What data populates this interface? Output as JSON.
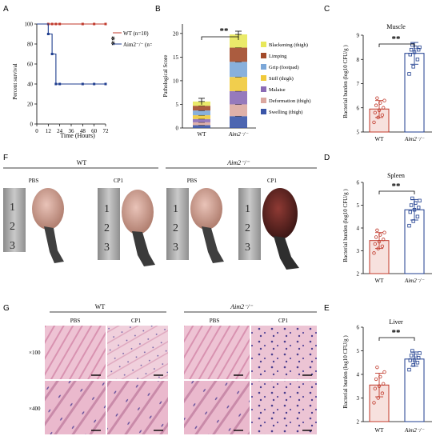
{
  "panels": {
    "A": "A",
    "B": "B",
    "C": "C",
    "D": "D",
    "E": "E",
    "F": "F",
    "G": "G"
  },
  "colors": {
    "wt": "#c0392b",
    "aim2": "#1f3e8f",
    "wt_bar_fill": "#f7e1de",
    "aim2_bar_fill": "#ffffff"
  },
  "panelA": {
    "ylabel": "Percent survival",
    "xlabel": "Time (Hours)",
    "legend": [
      "WT (n=10)",
      "Aim2⁻/⁻ (n=10)"
    ],
    "sig": "**",
    "yticks": [
      "0",
      "20",
      "40",
      "60",
      "80",
      "100"
    ],
    "xticks": [
      "0",
      "12",
      "24",
      "36",
      "48",
      "60",
      "72"
    ]
  },
  "panelB": {
    "ylabel": "Pathological Score",
    "sig": "**",
    "xcats": [
      "WT",
      "Aim2⁻/⁻"
    ],
    "yticks": [
      "0",
      "5",
      "10",
      "15",
      "20"
    ],
    "legend": [
      "Blackening (thigh)",
      "Limping",
      "Grip (footpad)",
      "Stiff (thigh)",
      "Malaise",
      "Deformation (thigh)",
      "Swelling (thigh)"
    ],
    "legend_colors": [
      "#e8e85a",
      "#a24a2a",
      "#7ba7d8",
      "#f0c93a",
      "#8b6bb5",
      "#dba8a0",
      "#3a55a8"
    ]
  },
  "panelC": {
    "title": "Muscle",
    "ylabel": "Bacterial burden (log10 CFU/g )",
    "sig": "**",
    "xcats": [
      "WT",
      "Aim2⁻/⁻"
    ],
    "yticks": [
      "5",
      "6",
      "7",
      "8",
      "9"
    ]
  },
  "panelD": {
    "title": "Spleen",
    "ylabel": "Bacterial burden (log10 CFU/g )",
    "sig": "**",
    "xcats": [
      "WT",
      "Aim2⁻/⁻"
    ],
    "yticks": [
      "2",
      "3",
      "4",
      "5",
      "6"
    ]
  },
  "panelE": {
    "title": "Liver",
    "ylabel": "Bacterial burden (log10 CFU/g )",
    "sig": "**",
    "xcats": [
      "WT",
      "Aim2⁻/⁻"
    ],
    "yticks": [
      "2",
      "3",
      "4",
      "5",
      "6"
    ]
  },
  "panelF": {
    "group_wt": "WT",
    "group_aim2": "Aim2⁻/⁻",
    "labels": [
      "PBS",
      "CP1",
      "PBS",
      "CP1"
    ],
    "ruler_text": "1 2 3"
  },
  "panelG": {
    "group_wt": "WT",
    "group_aim2": "Aim2⁻/⁻",
    "cols": [
      "PBS",
      "CP1",
      "PBS",
      "CP1"
    ],
    "rows": [
      "×100",
      "×400"
    ]
  },
  "chart_data": [
    {
      "panel": "A",
      "type": "line",
      "xlabel": "Time (Hours)",
      "ylabel": "Percent survival",
      "xlim": [
        0,
        72
      ],
      "ylim": [
        0,
        100
      ],
      "series": [
        {
          "name": "WT (n=10)",
          "x": [
            0,
            12,
            16,
            20,
            24,
            48,
            60,
            72
          ],
          "y": [
            100,
            100,
            100,
            100,
            100,
            100,
            100,
            100
          ]
        },
        {
          "name": "Aim2⁻/⁻ (n=10)",
          "x": [
            0,
            12,
            16,
            20,
            24,
            48,
            60,
            72
          ],
          "y": [
            100,
            90,
            70,
            40,
            40,
            40,
            40,
            40
          ]
        }
      ]
    },
    {
      "panel": "B",
      "type": "bar",
      "ylabel": "Pathological Score",
      "categories": [
        "WT",
        "Aim2⁻/⁻"
      ],
      "ylim": [
        0,
        22
      ],
      "series": [
        {
          "name": "Swelling (thigh)",
          "values": [
            0.6,
            2.5
          ]
        },
        {
          "name": "Deformation (thigh)",
          "values": [
            0.6,
            2.5
          ]
        },
        {
          "name": "Malaise",
          "values": [
            0.7,
            2.8
          ]
        },
        {
          "name": "Stiff (thigh)",
          "values": [
            0.8,
            3.0
          ]
        },
        {
          "name": "Grip (footpad)",
          "values": [
            1.0,
            3.2
          ]
        },
        {
          "name": "Limping",
          "values": [
            1.0,
            3.0
          ]
        },
        {
          "name": "Blackening (thigh)",
          "values": [
            0.9,
            2.8
          ]
        }
      ],
      "totals": [
        5.6,
        19.8
      ]
    },
    {
      "panel": "C",
      "type": "bar",
      "title": "Muscle",
      "categories": [
        "WT",
        "Aim2⁻/⁻"
      ],
      "values": [
        5.95,
        8.25
      ],
      "ylim": [
        5,
        9
      ],
      "errors": [
        0.35,
        0.45
      ],
      "points": [
        [
          5.4,
          5.6,
          5.7,
          5.8,
          5.9,
          6.0,
          6.1,
          6.2,
          6.3,
          6.4
        ],
        [
          7.4,
          7.7,
          8.0,
          8.2,
          8.3,
          8.4,
          8.4,
          8.5,
          8.5,
          8.6
        ]
      ]
    },
    {
      "panel": "D",
      "type": "bar",
      "title": "Spleen",
      "categories": [
        "WT",
        "Aim2⁻/⁻"
      ],
      "values": [
        3.45,
        4.8
      ],
      "ylim": [
        2,
        6
      ],
      "errors": [
        0.35,
        0.45
      ],
      "points": [
        [
          2.9,
          3.1,
          3.2,
          3.3,
          3.4,
          3.5,
          3.6,
          3.7,
          3.8,
          3.9
        ],
        [
          4.1,
          4.3,
          4.5,
          4.7,
          4.8,
          4.9,
          5.0,
          5.1,
          5.2,
          5.3
        ]
      ]
    },
    {
      "panel": "E",
      "type": "bar",
      "title": "Liver",
      "categories": [
        "WT",
        "Aim2⁻/⁻"
      ],
      "values": [
        3.55,
        4.65
      ],
      "ylim": [
        2,
        6
      ],
      "errors": [
        0.5,
        0.3
      ],
      "points": [
        [
          2.8,
          3.0,
          3.2,
          3.4,
          3.5,
          3.6,
          3.8,
          3.9,
          4.1,
          4.3
        ],
        [
          4.2,
          4.4,
          4.5,
          4.6,
          4.6,
          4.7,
          4.8,
          4.8,
          4.9,
          5.0
        ]
      ]
    }
  ]
}
